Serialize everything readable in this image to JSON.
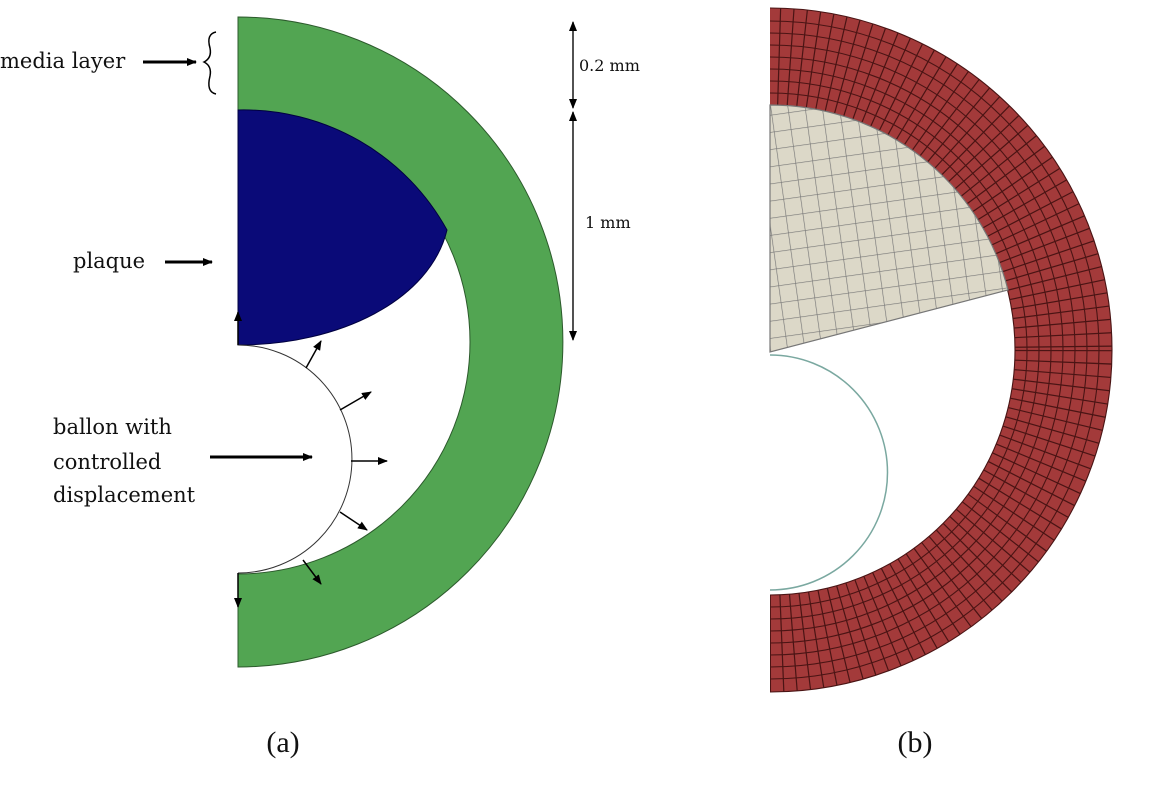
{
  "panel_a": {
    "labels": {
      "media_layer": "media layer",
      "plaque": "plaque",
      "balloon": [
        "ballon with",
        "controlled",
        "displacement"
      ],
      "thickness_media": "0.2 mm",
      "thickness_plaque": "1 mm"
    },
    "caption": "(a)"
  },
  "panel_b": {
    "caption": "(b)"
  }
}
